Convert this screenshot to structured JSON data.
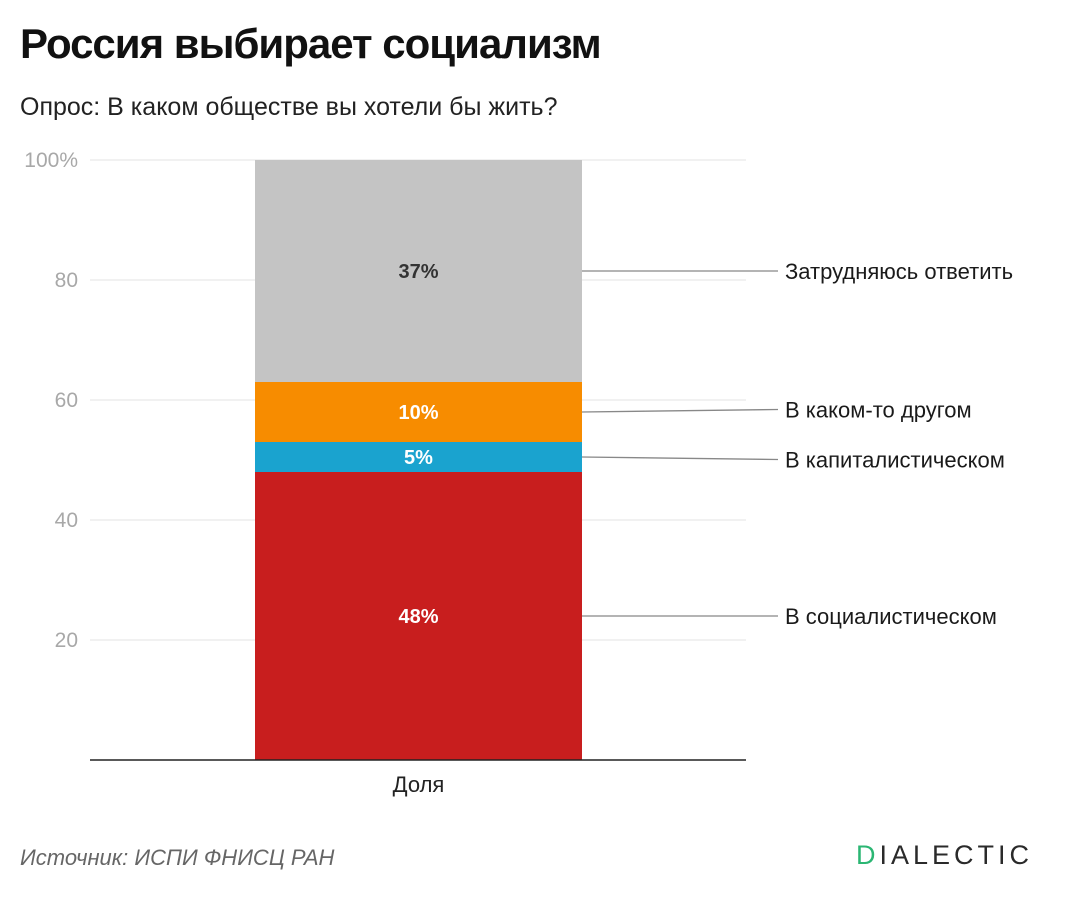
{
  "title": "Россия выбирает социализм",
  "subtitle": "Опрос: В каком обществе вы хотели бы жить?",
  "source": "Источник: ИСПИ ФНИСЦ РАН",
  "logo": {
    "first": "D",
    "rest": "IALECTIC",
    "accent_color": "#2bb673"
  },
  "chart_data": {
    "type": "bar",
    "stacked": true,
    "categories": [
      "Доля"
    ],
    "ylim": [
      0,
      100
    ],
    "yticks": [
      20,
      40,
      60,
      80,
      100
    ],
    "ytick_labels": [
      "20",
      "40",
      "60",
      "80",
      "100%"
    ],
    "series": [
      {
        "name": "В социалистическом",
        "values": [
          48
        ],
        "label": "48%",
        "color": "#c81e1e",
        "label_color": "#ffffff"
      },
      {
        "name": "В капиталистическом",
        "values": [
          5
        ],
        "label": "5%",
        "color": "#1aa3cf",
        "label_color": "#ffffff"
      },
      {
        "name": "В каком-то другом",
        "values": [
          10
        ],
        "label": "10%",
        "color": "#f78c00",
        "label_color": "#ffffff"
      },
      {
        "name": "Затрудняюсь ответить",
        "values": [
          37
        ],
        "label": "37%",
        "color": "#c4c4c4",
        "label_color": "#333333"
      }
    ]
  }
}
